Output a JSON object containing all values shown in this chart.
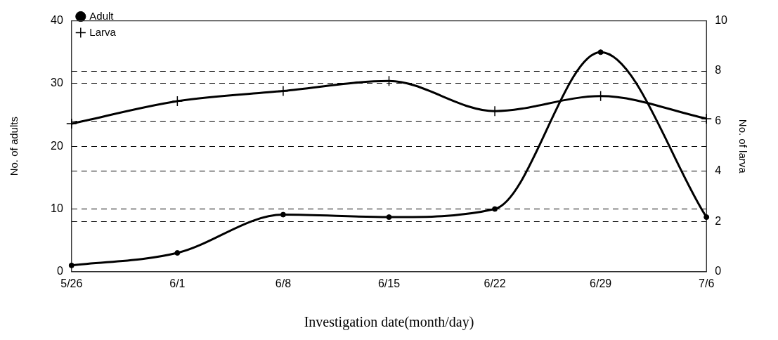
{
  "chart_data": {
    "type": "line",
    "xlabel": "Investigation date(month/day)",
    "ylabel": "No. of adults",
    "y2label": "No. of larva",
    "categories": [
      "5/26",
      "6/1",
      "6/8",
      "6/15",
      "6/22",
      "6/29",
      "7/6"
    ],
    "series": [
      {
        "name": "Adult",
        "color": "#000000",
        "marker": "circle",
        "values": [
          1,
          3,
          9.1,
          8.7,
          10,
          35,
          8.7
        ]
      },
      {
        "name": "Larva",
        "color": "#000000",
        "marker": "cross",
        "axis": "y2",
        "values": [
          5.9,
          6.8,
          7.2,
          7.6,
          6.4,
          7.0,
          6.1
        ]
      }
    ],
    "ylim": [
      0,
      40
    ],
    "yticks": [
      0,
      10,
      20,
      30,
      40
    ],
    "y2lim": [
      0,
      10
    ],
    "y2ticks": [
      0,
      2,
      4,
      6,
      8,
      10
    ],
    "grid": "y",
    "line_style": "solid",
    "legend": "top left"
  }
}
